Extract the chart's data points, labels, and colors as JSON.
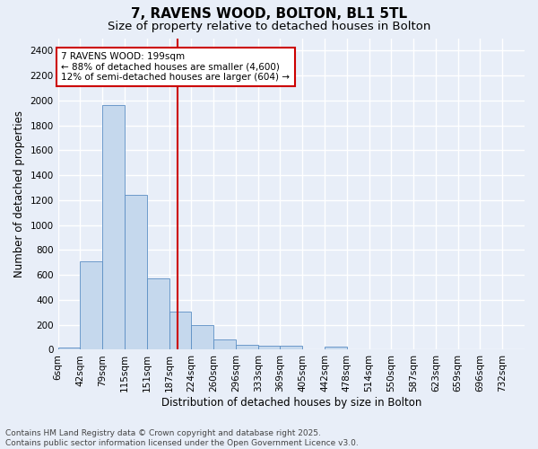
{
  "title": "7, RAVENS WOOD, BOLTON, BL1 5TL",
  "subtitle": "Size of property relative to detached houses in Bolton",
  "xlabel": "Distribution of detached houses by size in Bolton",
  "ylabel": "Number of detached properties",
  "bin_labels": [
    "6sqm",
    "42sqm",
    "79sqm",
    "115sqm",
    "151sqm",
    "187sqm",
    "224sqm",
    "260sqm",
    "296sqm",
    "333sqm",
    "369sqm",
    "405sqm",
    "442sqm",
    "478sqm",
    "514sqm",
    "550sqm",
    "587sqm",
    "623sqm",
    "659sqm",
    "696sqm",
    "732sqm"
  ],
  "bar_values": [
    15,
    710,
    1960,
    1240,
    570,
    305,
    200,
    80,
    40,
    30,
    30,
    0,
    25,
    0,
    0,
    0,
    0,
    0,
    0,
    0,
    0
  ],
  "bar_color": "#c5d8ed",
  "bar_edge_color": "#5b8ec4",
  "vline_x": 5.4,
  "vline_color": "#cc0000",
  "annotation_text": "7 RAVENS WOOD: 199sqm\n← 88% of detached houses are smaller (4,600)\n12% of semi-detached houses are larger (604) →",
  "annotation_box_color": "#ffffff",
  "annotation_box_edge": "#cc0000",
  "ylim": [
    0,
    2500
  ],
  "yticks": [
    0,
    200,
    400,
    600,
    800,
    1000,
    1200,
    1400,
    1600,
    1800,
    2000,
    2200,
    2400
  ],
  "bg_color": "#e8eef8",
  "grid_color": "#ffffff",
  "footer_text": "Contains HM Land Registry data © Crown copyright and database right 2025.\nContains public sector information licensed under the Open Government Licence v3.0.",
  "title_fontsize": 11,
  "subtitle_fontsize": 9.5,
  "axis_label_fontsize": 8.5,
  "tick_fontsize": 7.5,
  "annotation_fontsize": 7.5,
  "footer_fontsize": 6.5
}
